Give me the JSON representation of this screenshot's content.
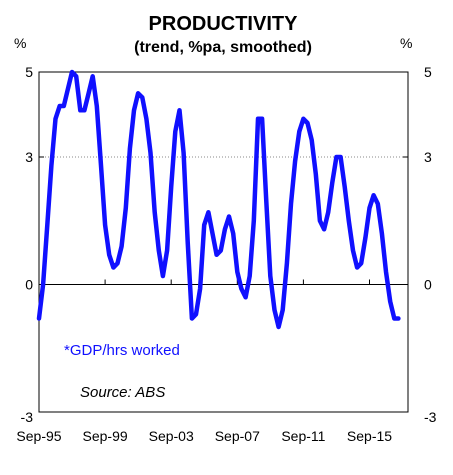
{
  "chart_data": {
    "type": "line",
    "title": "PRODUCTIVITY",
    "subtitle": "(trend, %pa, smoothed)",
    "left_unit": "%",
    "right_unit": "%",
    "ylim": [
      -3,
      5
    ],
    "yticks": [
      -3,
      0,
      3,
      5
    ],
    "xlim": [
      1995.67,
      2018.0
    ],
    "xticks": [
      {
        "label": "Sep-95",
        "x": 1995.67
      },
      {
        "label": "Sep-99",
        "x": 1999.67
      },
      {
        "label": "Sep-03",
        "x": 2003.67
      },
      {
        "label": "Sep-07",
        "x": 2007.67
      },
      {
        "label": "Sep-11",
        "x": 2011.67
      },
      {
        "label": "Sep-15",
        "x": 2015.67
      }
    ],
    "gridlines": [
      3
    ],
    "zero_line": true,
    "series": [
      {
        "name": "*GDP/hrs worked",
        "color": "#1010ff",
        "x": [
          1995.67,
          1995.92,
          1996.17,
          1996.42,
          1996.67,
          1996.92,
          1997.17,
          1997.42,
          1997.67,
          1997.92,
          1998.17,
          1998.42,
          1998.67,
          1998.92,
          1999.17,
          1999.42,
          1999.67,
          1999.92,
          2000.17,
          2000.42,
          2000.67,
          2000.92,
          2001.17,
          2001.42,
          2001.67,
          2001.92,
          2002.17,
          2002.42,
          2002.67,
          2002.92,
          2003.17,
          2003.42,
          2003.67,
          2003.92,
          2004.17,
          2004.42,
          2004.67,
          2004.92,
          2005.17,
          2005.42,
          2005.67,
          2005.92,
          2006.17,
          2006.42,
          2006.67,
          2006.92,
          2007.17,
          2007.42,
          2007.67,
          2007.92,
          2008.17,
          2008.42,
          2008.67,
          2008.92,
          2009.17,
          2009.42,
          2009.67,
          2009.92,
          2010.17,
          2010.42,
          2010.67,
          2010.92,
          2011.17,
          2011.42,
          2011.67,
          2011.92,
          2012.17,
          2012.42,
          2012.67,
          2012.92,
          2013.17,
          2013.42,
          2013.67,
          2013.92,
          2014.17,
          2014.42,
          2014.67,
          2014.92,
          2015.17,
          2015.42,
          2015.67,
          2015.92,
          2016.17,
          2016.42,
          2016.67,
          2016.92,
          2017.17,
          2017.42
        ],
        "y": [
          -0.8,
          0.0,
          1.4,
          2.8,
          3.9,
          4.2,
          4.2,
          4.6,
          5.0,
          4.9,
          4.1,
          4.1,
          4.5,
          4.9,
          4.2,
          2.8,
          1.4,
          0.7,
          0.4,
          0.5,
          0.9,
          1.8,
          3.2,
          4.1,
          4.5,
          4.4,
          3.9,
          3.1,
          1.7,
          0.8,
          0.2,
          0.8,
          2.3,
          3.6,
          4.1,
          3.1,
          1.0,
          -0.8,
          -0.7,
          -0.1,
          1.4,
          1.7,
          1.2,
          0.7,
          0.8,
          1.3,
          1.6,
          1.2,
          0.3,
          -0.1,
          -0.3,
          0.2,
          1.5,
          3.9,
          3.9,
          2.0,
          0.2,
          -0.6,
          -1.0,
          -0.6,
          0.5,
          1.9,
          2.9,
          3.6,
          3.9,
          3.8,
          3.4,
          2.6,
          1.5,
          1.3,
          1.7,
          2.4,
          3.0,
          3.0,
          2.3,
          1.5,
          0.8,
          0.4,
          0.5,
          1.1,
          1.8,
          2.1,
          1.9,
          1.2,
          0.3,
          -0.4,
          -0.8,
          -0.8
        ]
      }
    ],
    "annotations": [
      {
        "text": "*GDP/hrs worked",
        "color": "#1010ff",
        "style": "normal"
      },
      {
        "text": "Source: ABS",
        "color": "#000000",
        "style": "italic"
      }
    ]
  }
}
